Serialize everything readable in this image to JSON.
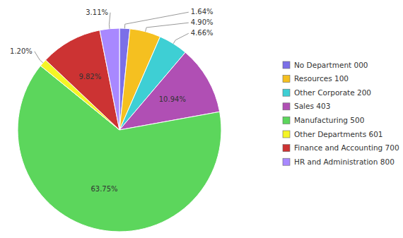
{
  "chart_data": {
    "type": "pie",
    "categories": [
      "No Department 000",
      "Resources 100",
      "Other Corporate 200",
      "Sales 403",
      "Manufacturing 500",
      "Other Departments 601",
      "Finance and Accounting 700",
      "HR and Administration 800"
    ],
    "values": [
      1.64,
      4.9,
      4.66,
      10.94,
      63.75,
      1.2,
      9.82,
      3.11
    ],
    "value_labels": [
      "1.64%",
      "4.90%",
      "4.66%",
      "10.94%",
      "63.75%",
      "1.20%",
      "9.82%",
      "3.11%"
    ],
    "colors": [
      "#7b6fe8",
      "#f5c020",
      "#3ecfd4",
      "#b04fb4",
      "#5cd65c",
      "#f5f525",
      "#cc3333",
      "#a888ff"
    ],
    "data_labels": true,
    "legend": "right"
  }
}
